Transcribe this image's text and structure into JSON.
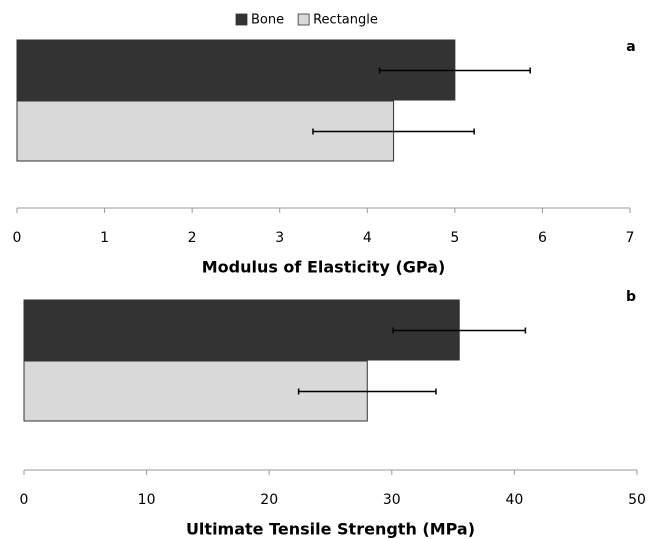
{
  "chart_data": [
    {
      "type": "bar",
      "orientation": "horizontal",
      "panel_label": "a",
      "x_label": "Modulus of Elasticity (GPa)",
      "xlim": [
        0,
        7
      ],
      "xticks": [
        0,
        1,
        2,
        3,
        4,
        5,
        6,
        7
      ],
      "series": [
        {
          "name": "Bone",
          "color": "#333333",
          "values": [
            5.0
          ],
          "errors": [
            0.86
          ]
        },
        {
          "name": "Rectangle",
          "color": "#d9d9d9",
          "values": [
            4.3
          ],
          "errors": [
            0.92
          ]
        }
      ]
    },
    {
      "type": "bar",
      "orientation": "horizontal",
      "panel_label": "b",
      "x_label": "Ultimate Tensile Strength (MPa)",
      "xlim": [
        0,
        50
      ],
      "xticks": [
        0,
        10,
        20,
        30,
        40,
        50
      ],
      "series": [
        {
          "color": "#333333",
          "values": [
            35.5
          ],
          "errors": [
            5.4
          ]
        },
        {
          "color": "#d9d9d9",
          "values": [
            28.0
          ],
          "errors": [
            5.6
          ]
        }
      ]
    }
  ]
}
